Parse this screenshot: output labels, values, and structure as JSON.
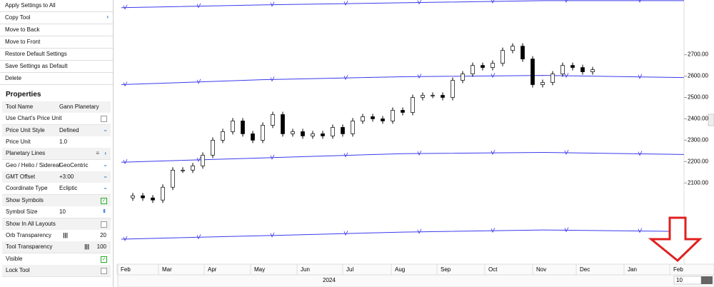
{
  "menu": [
    "Apply Settings to All",
    "Copy Tool",
    "Move to Back",
    "Move to Front",
    "Restore Default Settings",
    "Save Settings as Default",
    "Delete"
  ],
  "properties": {
    "title": "Properties",
    "rows": [
      {
        "name": "Tool Name",
        "value": "Gann Planetary Lines"
      },
      {
        "name": "Use Chart's Price Unit",
        "checked": false
      },
      {
        "name": "Price Unit Style",
        "value": "Defined",
        "control": "dropdown"
      },
      {
        "name": "Price Unit",
        "value": "1.0"
      },
      {
        "name": "Planetary Lines",
        "control": "submenu"
      },
      {
        "name": "Geo / Helio / Sidereal",
        "value": "GeoCentric",
        "control": "dropdown"
      },
      {
        "name": "GMT Offset",
        "value": "+3:00",
        "control": "dropdown"
      },
      {
        "name": "Coordinate Type",
        "value": "Ecliptic",
        "control": "dropdown"
      },
      {
        "name": "Show Symbols",
        "checked": true
      },
      {
        "name": "Symbol Size",
        "value": "10",
        "control": "stepper"
      },
      {
        "name": "Show In All Layouts",
        "checked": false
      },
      {
        "name": "Orb Transparency",
        "value": "20",
        "control": "slider"
      },
      {
        "name": "Tool Transparency",
        "value": "100",
        "control": "slider"
      },
      {
        "name": "Visible",
        "checked": true
      },
      {
        "name": "Lock Tool",
        "checked": false
      }
    ]
  },
  "chart": {
    "ylim": [
      1720,
      2956
    ],
    "yticks": [
      {
        "value": 2100,
        "label": "2100.00"
      },
      {
        "value": 2200,
        "label": "2200.00"
      },
      {
        "value": 2300,
        "label": "2300.00"
      },
      {
        "value": 2400,
        "label": "2400.00"
      },
      {
        "value": 2500,
        "label": "2500.00"
      },
      {
        "value": 2600,
        "label": "2600.00"
      },
      {
        "value": 2700,
        "label": "2700.00"
      }
    ],
    "months": [
      "Feb",
      "Mar",
      "Apr",
      "May",
      "Jun",
      "Jul",
      "Aug",
      "Sep",
      "Oct",
      "Nov",
      "Dec",
      "Jan",
      "Feb"
    ],
    "year": "2024",
    "zoom": "10",
    "close": [
      2030,
      2040,
      2030,
      2020,
      2080,
      2160,
      2160,
      2180,
      2230,
      2300,
      2340,
      2390,
      2330,
      2300,
      2370,
      2420,
      2330,
      2340,
      2320,
      2330,
      2320,
      2360,
      2330,
      2390,
      2410,
      2400,
      2390,
      2440,
      2430,
      2500,
      2510,
      2510,
      2500,
      2580,
      2610,
      2650,
      2640,
      2660,
      2720,
      2740,
      2680,
      2560,
      2570,
      2610,
      2650,
      2640,
      2620,
      2630
    ],
    "candle_color": "#000000",
    "planetary_lines": {
      "color": "#3a3aee",
      "lines": [
        [
          2920,
          2933,
          2943,
          2953,
          2953
        ],
        [
          2560,
          2583,
          2597,
          2603,
          2593
        ],
        [
          2197,
          2217,
          2237,
          2243,
          2233
        ],
        [
          1837,
          1853,
          1870,
          1880,
          1873
        ]
      ]
    }
  }
}
